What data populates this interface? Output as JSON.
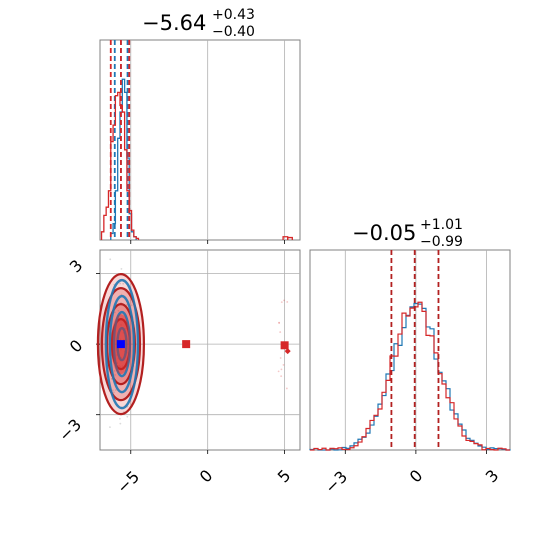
{
  "colors": {
    "blue": "#1f77b4",
    "red": "#d62728",
    "blue_dark": "#1060a8",
    "red_dark": "#b32020",
    "grid": "#b0b0b0",
    "axis": "#808080"
  },
  "chart_data": [
    {
      "type": "histogram",
      "panel": "marginal-x",
      "title": {
        "median": "−5.64",
        "plus": "+0.43",
        "minus": "−0.40"
      },
      "xlim": [
        -7,
        6
      ],
      "grid_x": [
        -5,
        0,
        5
      ],
      "series": [
        {
          "color": "blue",
          "bins_x": [
            -6.3,
            -6.15,
            -6.0,
            -5.85,
            -5.7,
            -5.55,
            -5.4,
            -5.25,
            -5.1,
            -4.95,
            -4.8
          ],
          "heights": [
            0.04,
            0.1,
            0.3,
            0.62,
            0.78,
            0.98,
            0.9,
            0.5,
            0.16,
            0.05,
            0.02
          ],
          "quantile_lines": [
            -6.04,
            -5.64,
            -5.21
          ]
        },
        {
          "color": "red",
          "bins_x": [
            -6.9,
            -6.75,
            -6.6,
            -6.45,
            -6.3,
            -6.15,
            -6.0,
            -5.85,
            -5.7,
            -5.55,
            -5.4,
            -5.25,
            -5.1,
            -4.95,
            -4.8,
            -4.65
          ],
          "heights": [
            0.05,
            0.15,
            0.2,
            0.3,
            0.6,
            0.7,
            0.88,
            0.9,
            0.82,
            0.78,
            0.55,
            0.3,
            0.18,
            0.06,
            0.02,
            0.01
          ],
          "tail": [
            {
              "x": 4.9,
              "h": 0.02
            },
            {
              "x": 5.2,
              "h": 0.015
            }
          ],
          "quantile_lines": [
            -6.3,
            -5.64,
            -5.1
          ]
        }
      ]
    },
    {
      "type": "contour-scatter",
      "panel": "joint",
      "xlim": [
        -7,
        6
      ],
      "ylim": [
        -4.5,
        4
      ],
      "x_ticks": [
        "−5",
        "0",
        "5"
      ],
      "y_ticks": [
        "3",
        "0",
        "−3"
      ],
      "x_tick_values": [
        -5,
        0,
        5
      ],
      "y_tick_values": [
        3,
        0,
        -3
      ],
      "center": {
        "x": -5.64,
        "y": 0.0
      },
      "markers": [
        {
          "x": -1.4,
          "y": 0.0,
          "color": "red",
          "shape": "square"
        },
        {
          "x": 5.0,
          "y": -0.05,
          "color": "red",
          "shape": "square"
        },
        {
          "x": 5.2,
          "y": -0.3,
          "color": "red",
          "shape": "diamond"
        }
      ]
    },
    {
      "type": "histogram",
      "panel": "marginal-y",
      "title": {
        "median": "−0.05",
        "plus": "+1.01",
        "minus": "−0.99"
      },
      "xlim": [
        -4.5,
        4
      ],
      "x_ticks": [
        "−3",
        "0",
        "3"
      ],
      "x_tick_values": [
        -3,
        0,
        3
      ],
      "quantile_lines": [
        -1.04,
        -0.05,
        0.96
      ]
    }
  ]
}
